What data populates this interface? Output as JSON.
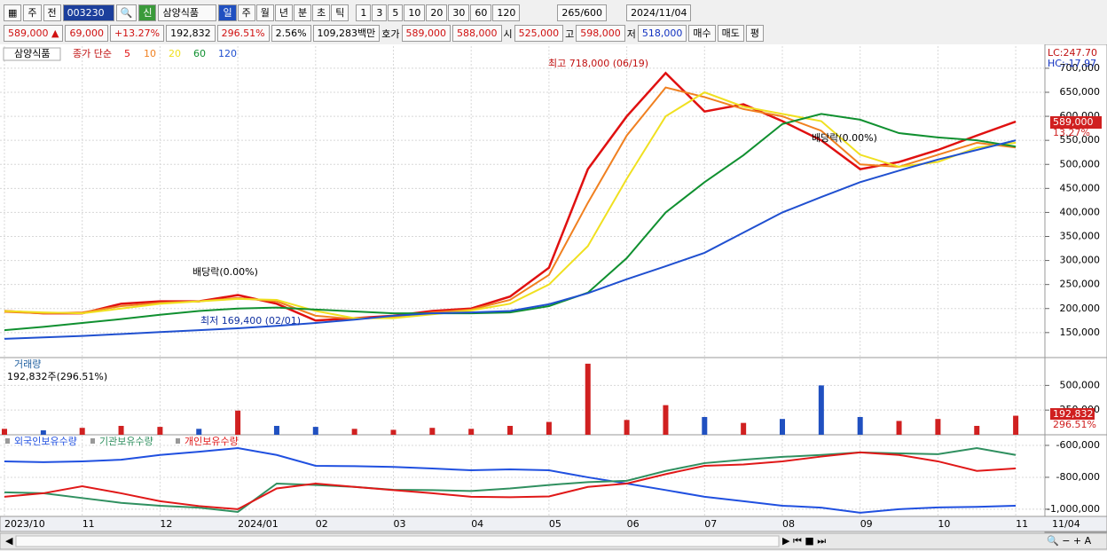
{
  "toolbar": {
    "market": "주",
    "scope": "전",
    "code": "003230",
    "badge": "신",
    "name": "삼양식품",
    "periods": [
      "일",
      "주",
      "월",
      "년",
      "분",
      "초",
      "틱"
    ],
    "intervals": [
      "1",
      "3",
      "5",
      "10",
      "20",
      "30",
      "60",
      "120"
    ],
    "count": "265/600",
    "date": "2024/11/04"
  },
  "quote": {
    "price": "589,000 ▲",
    "change": "69,000",
    "change_pct": "+13.27%",
    "volume": "192,832",
    "volume_ratio": "296.51%",
    "turnover": "2.56%",
    "amount": "109,283백만",
    "ask_label": "호가",
    "ask": "589,000",
    "bid": "588,000",
    "open_label": "시",
    "open": "525,000",
    "high_label": "고",
    "high": "598,000",
    "low_label": "저",
    "low": "518,000",
    "buy": "매수",
    "sell": "매도",
    "avg": "평"
  },
  "chart_data": [
    {
      "type": "line",
      "title": "삼양식품",
      "legend_title": "종가 단순",
      "categories": [
        "2023/10",
        null,
        "11",
        null,
        "12",
        null,
        "2024/01",
        null,
        "02",
        null,
        "03",
        null,
        "04",
        null,
        "05",
        null,
        "06",
        null,
        "07",
        null,
        "08",
        null,
        "09",
        null,
        "10",
        null,
        "11"
      ],
      "end_label": "11/04",
      "series": [
        {
          "name": "5",
          "color": "#e01010",
          "values": [
            195000,
            190000,
            190000,
            210000,
            215000,
            215000,
            228000,
            210000,
            175000,
            180000,
            185000,
            195000,
            200000,
            225000,
            285000,
            490000,
            600000,
            690000,
            610000,
            625000,
            590000,
            550000,
            490000,
            505000,
            530000,
            560000,
            589000
          ]
        },
        {
          "name": "10",
          "color": "#f08020",
          "values": [
            193000,
            190000,
            192000,
            205000,
            212000,
            215000,
            222000,
            215000,
            185000,
            178000,
            183000,
            192000,
            198000,
            218000,
            270000,
            420000,
            560000,
            660000,
            640000,
            615000,
            600000,
            570000,
            500000,
            495000,
            520000,
            545000,
            535000
          ]
        },
        {
          "name": "20",
          "color": "#f0e020",
          "values": [
            195000,
            192000,
            190000,
            200000,
            210000,
            215000,
            220000,
            218000,
            195000,
            180000,
            180000,
            188000,
            196000,
            210000,
            250000,
            330000,
            470000,
            600000,
            650000,
            620000,
            605000,
            590000,
            520000,
            495000,
            505000,
            535000,
            545000
          ]
        },
        {
          "name": "60",
          "color": "#109030",
          "values": [
            155000,
            162000,
            170000,
            178000,
            187000,
            195000,
            200000,
            202000,
            198000,
            194000,
            190000,
            190000,
            190000,
            192000,
            205000,
            233000,
            305000,
            400000,
            463000,
            519000,
            584000,
            605000,
            593000,
            565000,
            556000,
            550000,
            537000
          ]
        },
        {
          "name": "120",
          "color": "#2050d0",
          "values": [
            137000,
            140000,
            143000,
            147000,
            151000,
            155000,
            159000,
            164000,
            170000,
            177000,
            185000,
            190000,
            192000,
            195000,
            209000,
            232000,
            261000,
            288000,
            316000,
            358000,
            400000,
            432000,
            463000,
            487000,
            510000,
            530000,
            550000
          ]
        }
      ],
      "ylim": [
        98000,
        746000
      ],
      "yticks": [
        {
          "value": 150000,
          "label": "150,000"
        },
        {
          "value": 200000,
          "label": "200,000"
        },
        {
          "value": 250000,
          "label": "250,000"
        },
        {
          "value": 300000,
          "label": "300,000"
        },
        {
          "value": 350000,
          "label": "350,000"
        },
        {
          "value": 400000,
          "label": "400,000"
        },
        {
          "value": 450000,
          "label": "450,000"
        },
        {
          "value": 500000,
          "label": "500,000"
        },
        {
          "value": 550000,
          "label": "550,000"
        },
        {
          "value": 600000,
          "label": "600,000"
        },
        {
          "value": 650000,
          "label": "650,000"
        },
        {
          "value": 700000,
          "label": "700,000"
        }
      ],
      "grid": true,
      "high_label": "최고 718,000 (06/19)",
      "low_label": "최저 169,400 (02/01)",
      "dividend_labels": [
        "배당락(0.00%)",
        "배당락(0.00%)"
      ],
      "lc_label": "LC:247.70",
      "hc_label": "HC:-17.97",
      "last_price_label": "589,000",
      "last_change_label": "13.27%"
    },
    {
      "type": "bar",
      "title": "거래량",
      "subtitle": "192,832주(296.51%)",
      "values": [
        60000,
        45000,
        70000,
        90000,
        80000,
        60000,
        245000,
        90000,
        80000,
        60000,
        50000,
        70000,
        60000,
        90000,
        130000,
        720000,
        150000,
        300000,
        180000,
        120000,
        160000,
        500000,
        180000,
        140000,
        160000,
        90000,
        192832
      ],
      "colors": [
        "#d02020",
        "#2050c0",
        "#d02020",
        "#d02020",
        "#d02020",
        "#2050c0",
        "#d02020",
        "#2050c0",
        "#2050c0",
        "#d02020",
        "#d02020",
        "#d02020",
        "#d02020",
        "#d02020",
        "#d02020",
        "#d02020",
        "#d02020",
        "#d02020",
        "#2050c0",
        "#d02020",
        "#2050c0",
        "#2050c0",
        "#2050c0",
        "#d02020",
        "#d02020",
        "#d02020",
        "#d02020"
      ],
      "ylim": [
        0,
        773000
      ],
      "yticks": [
        {
          "value": 250000,
          "label": "250,000"
        },
        {
          "value": 500000,
          "label": "500,000"
        }
      ],
      "grid": true,
      "last_volume_label": "192,832",
      "last_ratio_label": "296.51%"
    },
    {
      "type": "line",
      "series": [
        {
          "name": "외국인보유수량",
          "color": "#2050e0",
          "values": [
            -700000,
            -705000,
            -700000,
            -690000,
            -660000,
            -640000,
            -617000,
            -660000,
            -728000,
            -730000,
            -735000,
            -745000,
            -756000,
            -750000,
            -756000,
            -800000,
            -839000,
            -880000,
            -922000,
            -950000,
            -978000,
            -990000,
            -1022000,
            -1000000,
            -989000,
            -985000,
            -978000
          ]
        },
        {
          "name": "기관보유수량",
          "color": "#309060",
          "values": [
            -894000,
            -900000,
            -930000,
            -960000,
            -978000,
            -990000,
            -1017000,
            -839000,
            -848000,
            -860000,
            -878000,
            -880000,
            -886000,
            -870000,
            -848000,
            -830000,
            -822000,
            -760000,
            -711000,
            -690000,
            -672000,
            -660000,
            -644000,
            -650000,
            -655000,
            -617000,
            -660000
          ]
        },
        {
          "name": "개인보유수량",
          "color": "#e01818",
          "values": [
            -922000,
            -900000,
            -856000,
            -900000,
            -950000,
            -980000,
            -1000000,
            -870000,
            -839000,
            -860000,
            -880000,
            -900000,
            -922000,
            -925000,
            -920000,
            -860000,
            -839000,
            -780000,
            -728000,
            -720000,
            -700000,
            -670000,
            -644000,
            -660000,
            -700000,
            -760000,
            -744000
          ]
        }
      ],
      "ylim": [
        -1045000,
        -539000
      ],
      "yticks": [
        {
          "value": -600000,
          "label": "-600,000"
        },
        {
          "value": -800000,
          "label": "-800,000"
        },
        {
          "value": -1000000,
          "label": "-1,000,000"
        }
      ],
      "grid": true
    }
  ]
}
